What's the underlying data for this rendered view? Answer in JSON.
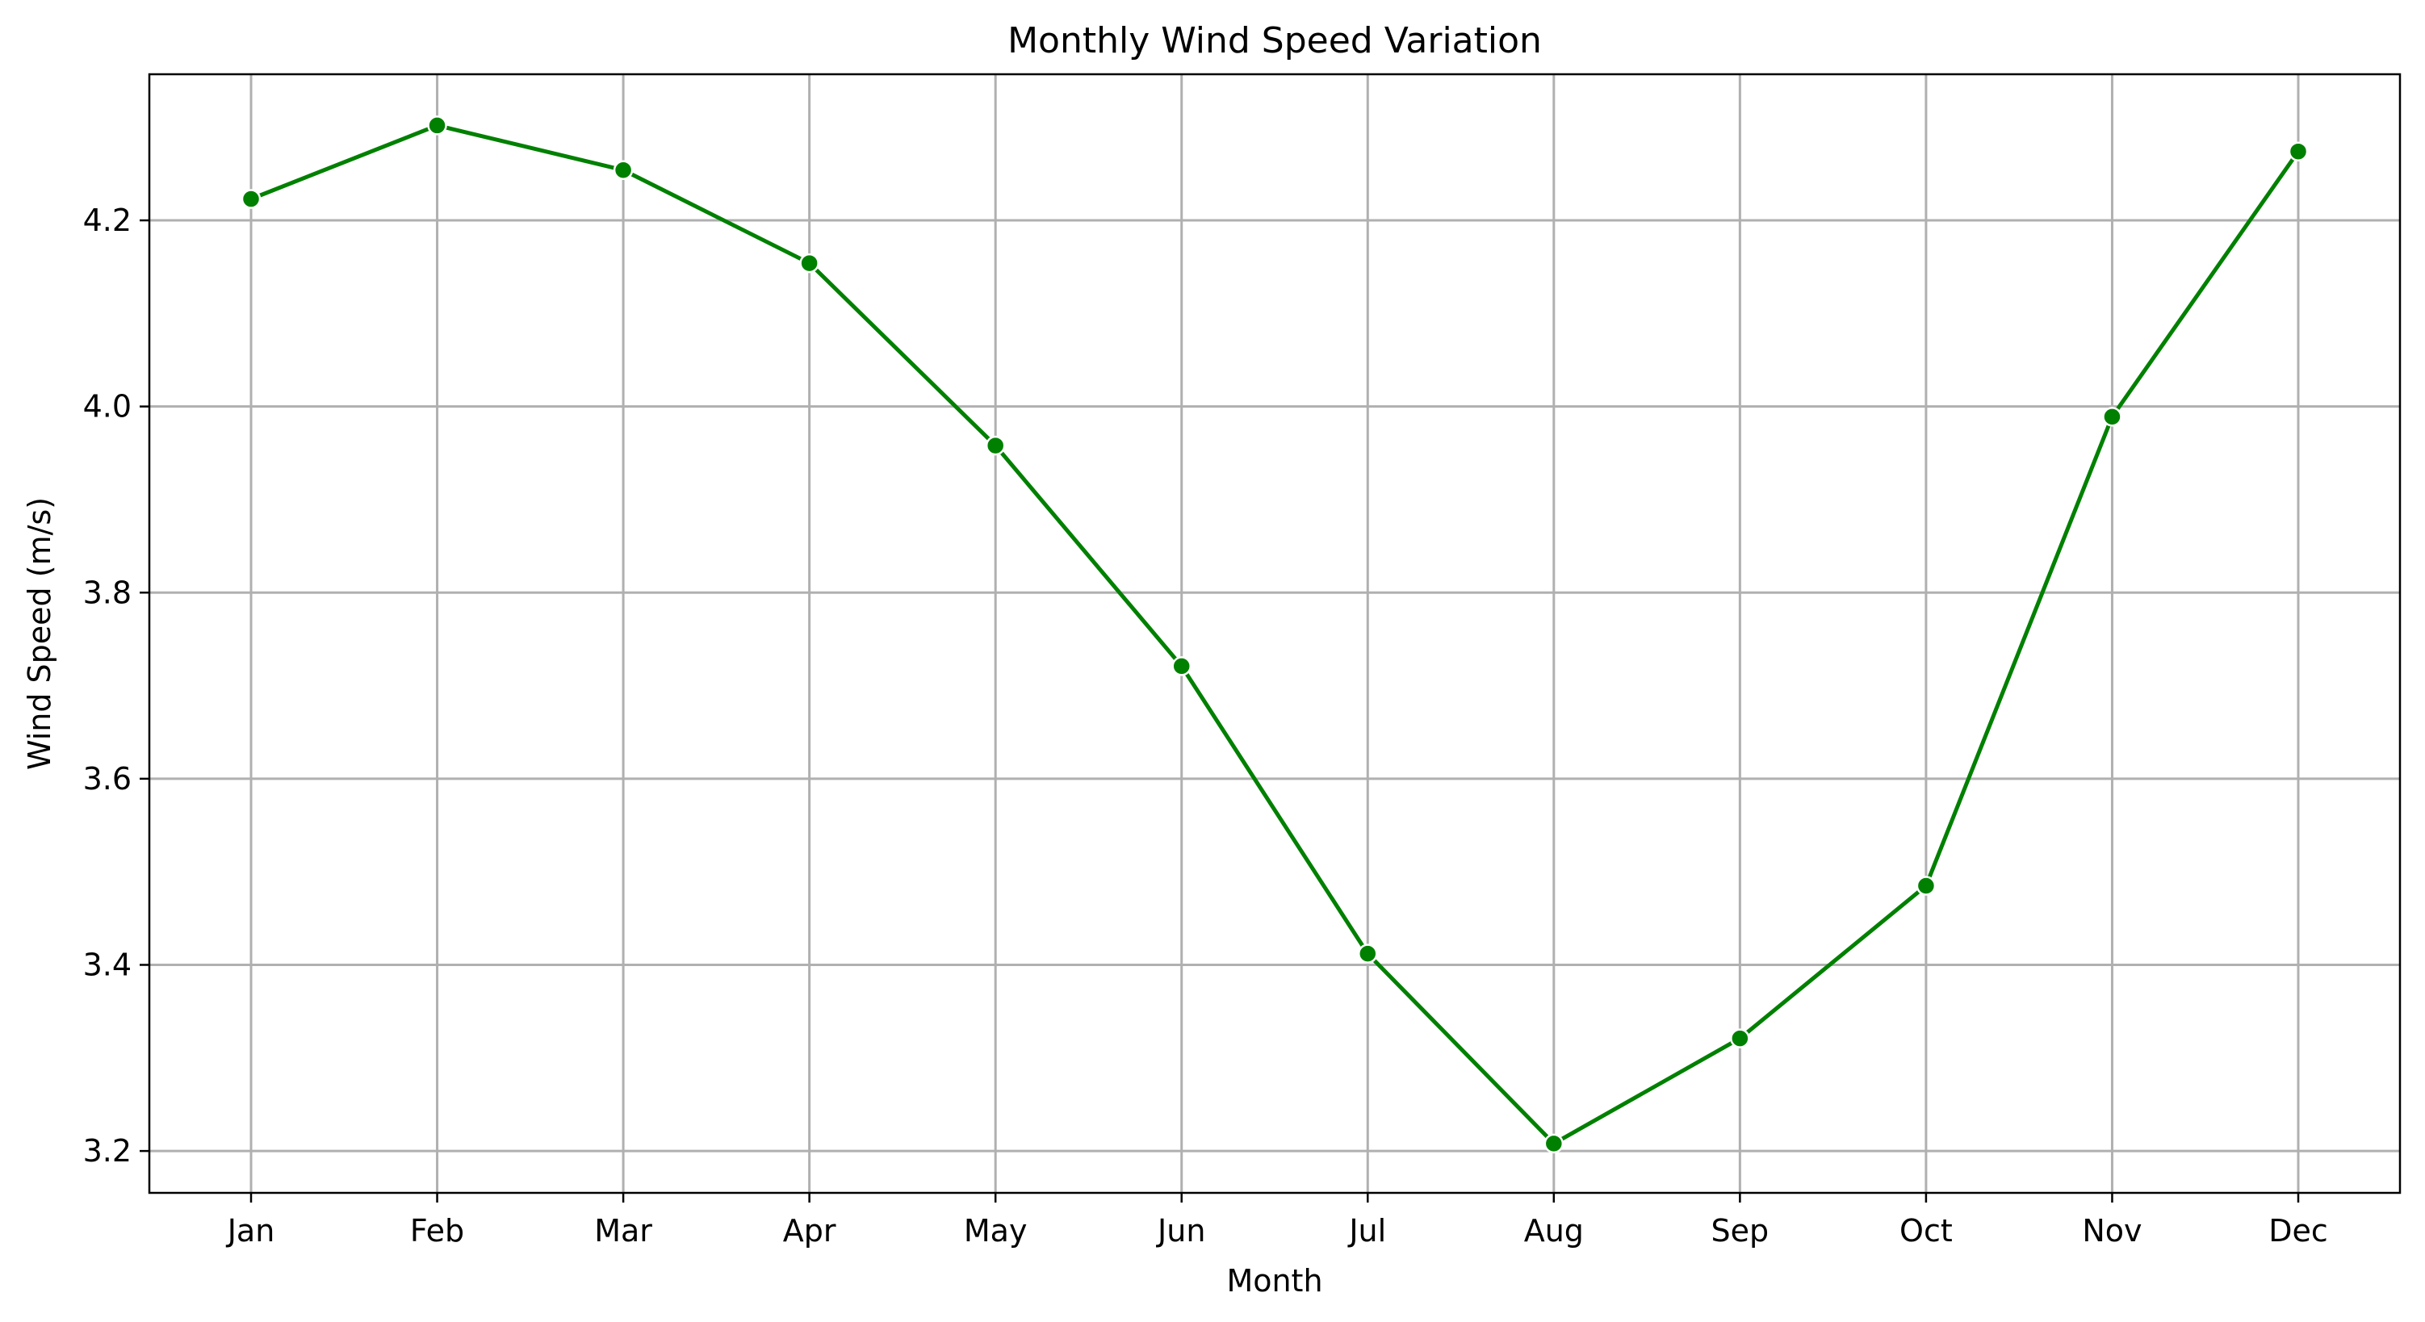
{
  "chart_data": {
    "type": "line",
    "title": "Monthly Wind Speed Variation",
    "xlabel": "Month",
    "ylabel": "Wind Speed (m/s)",
    "categories": [
      "Jan",
      "Feb",
      "Mar",
      "Apr",
      "May",
      "Jun",
      "Jul",
      "Aug",
      "Sep",
      "Oct",
      "Nov",
      "Dec"
    ],
    "series": [
      {
        "values": [
          4.223,
          4.302,
          4.254,
          4.154,
          3.958,
          3.721,
          3.412,
          3.208,
          3.321,
          3.485,
          3.989,
          4.274
        ],
        "color": "#008000",
        "marker": "circle"
      }
    ],
    "ylim": [
      3.155,
      4.357
    ],
    "yticks": [
      "3.2",
      "3.4",
      "3.6",
      "3.8",
      "4.0",
      "4.2"
    ],
    "grid": true,
    "legend": "none"
  }
}
